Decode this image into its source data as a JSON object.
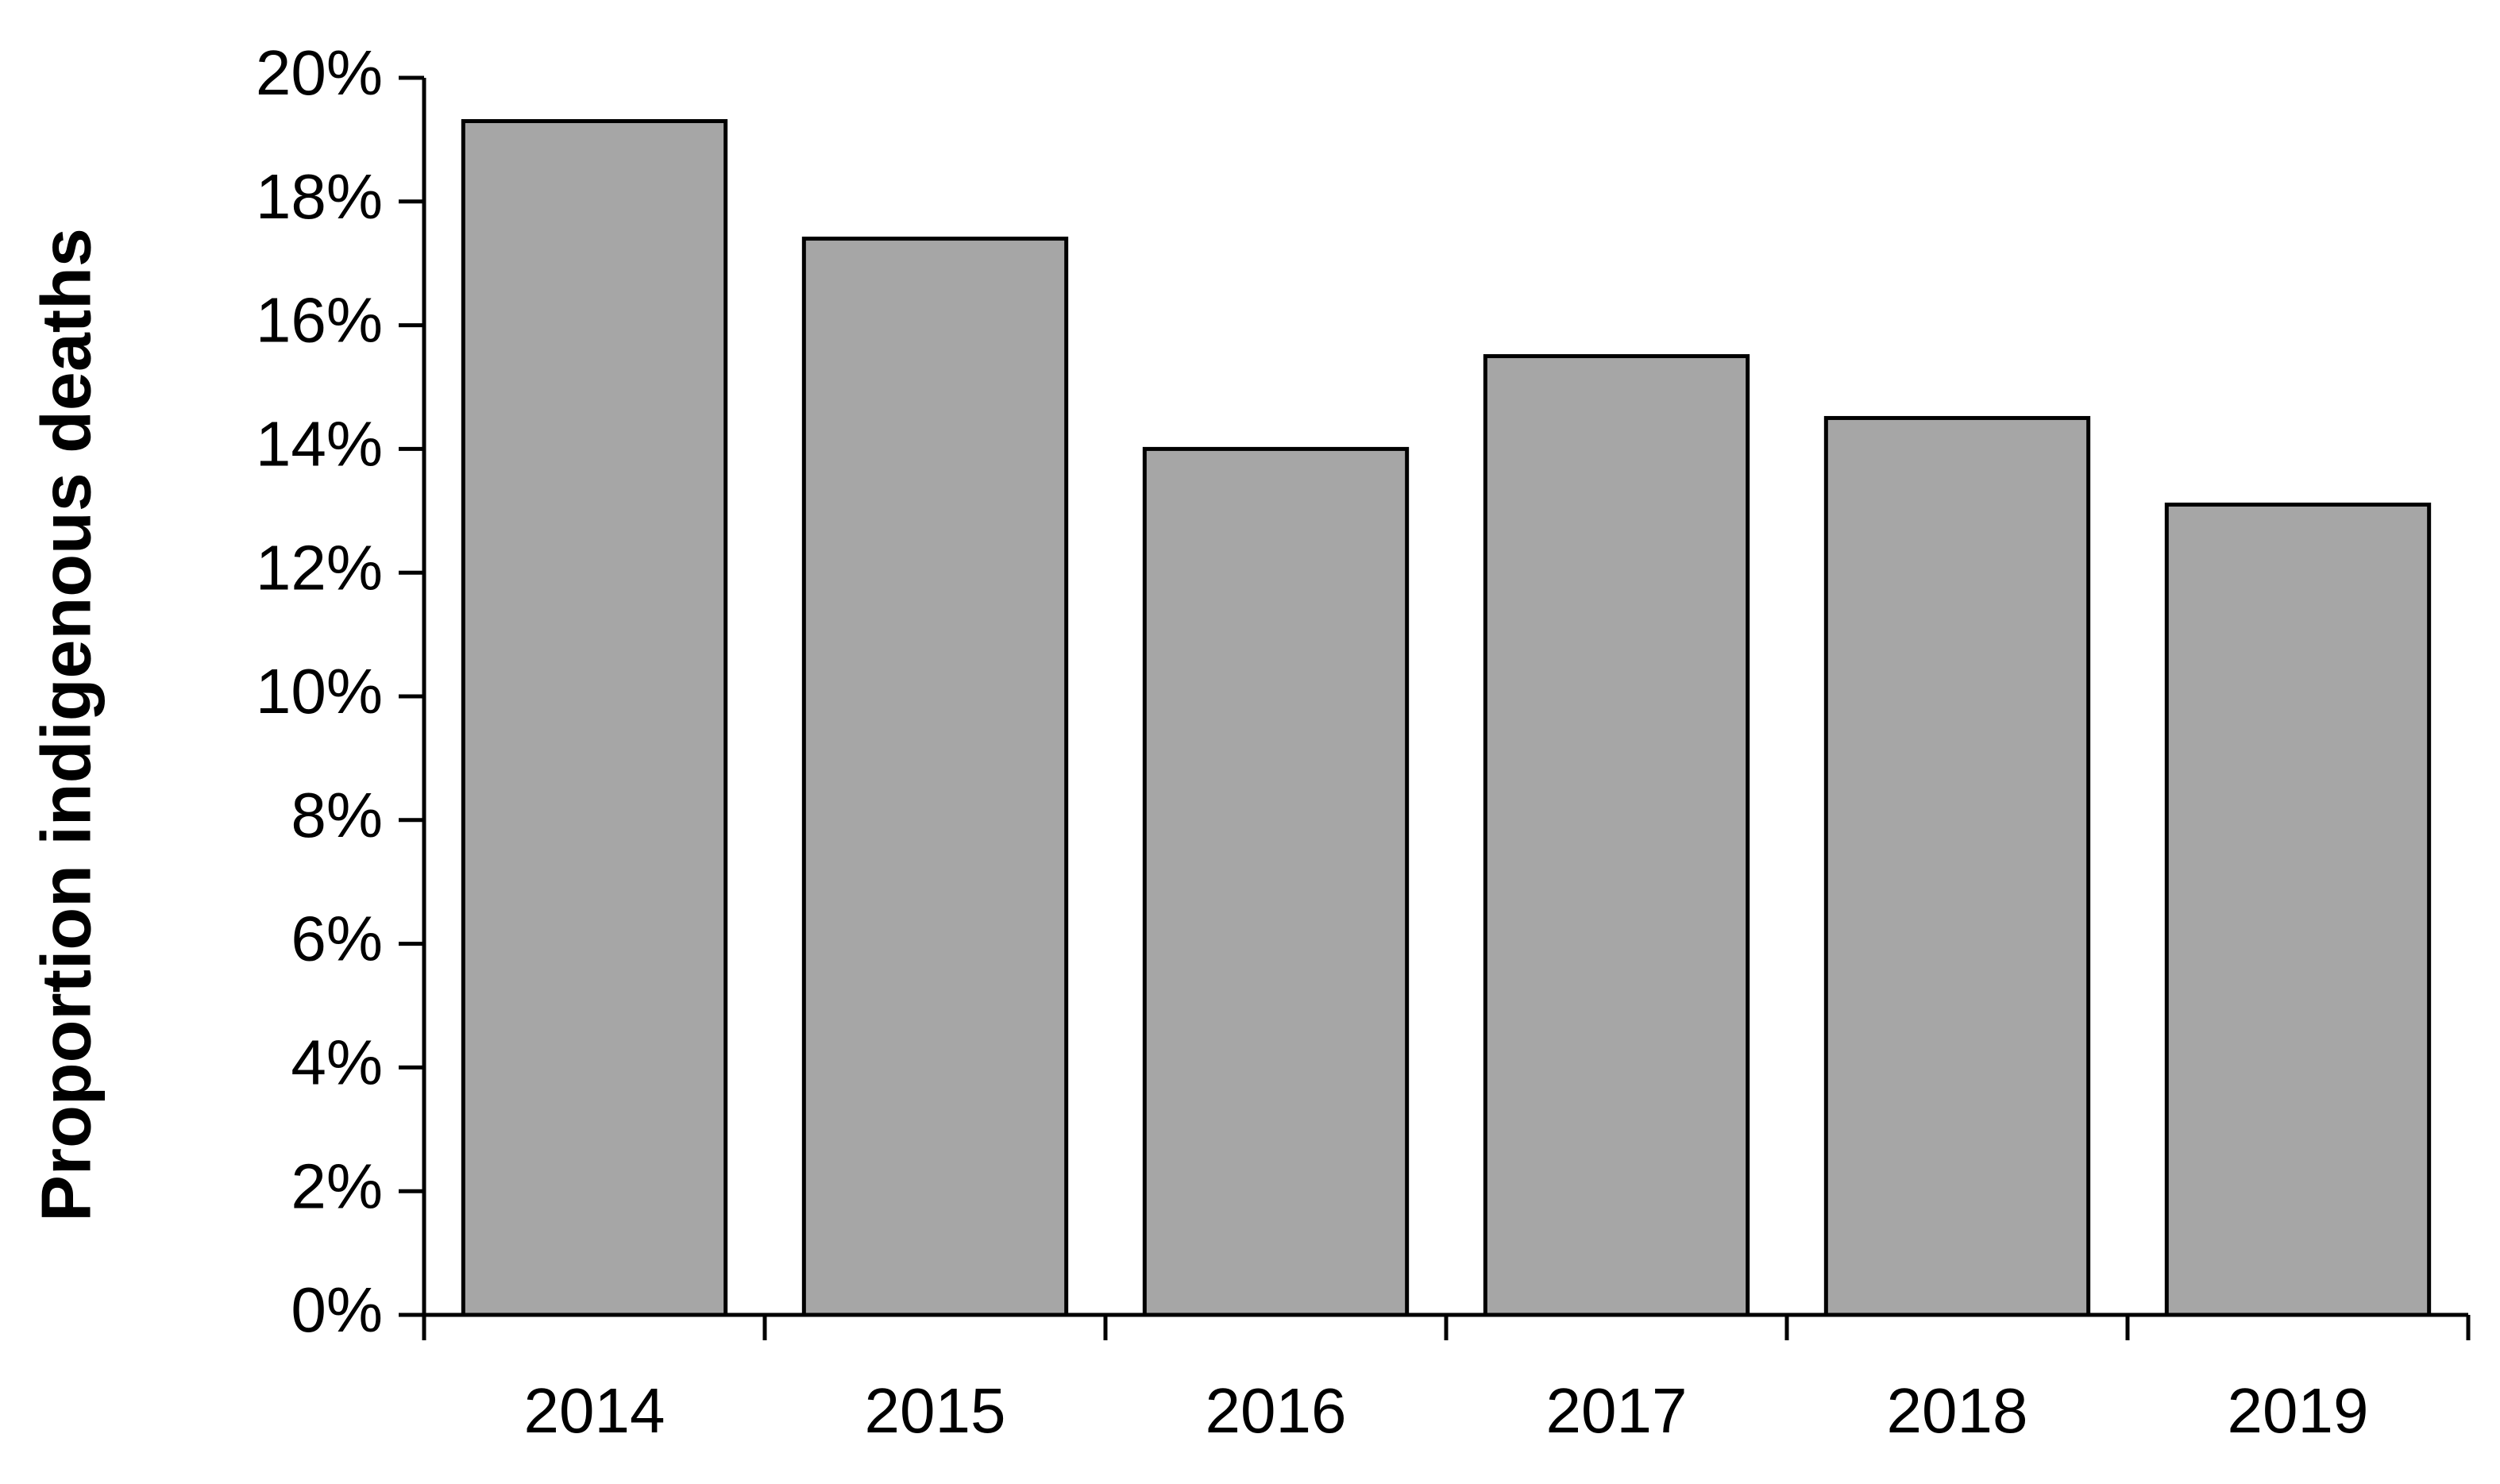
{
  "chart_data": {
    "type": "bar",
    "y_label": "Proportion indigenous deaths",
    "categories": [
      "2014",
      "2015",
      "2016",
      "2017",
      "2018",
      "2019"
    ],
    "values": [
      19.3,
      17.4,
      14.0,
      15.5,
      14.5,
      13.1
    ],
    "color": "#a6a6a6",
    "ylim": [
      0,
      20
    ],
    "yticks": [
      {
        "value": 0,
        "label": "0%"
      },
      {
        "value": 2,
        "label": "2%"
      },
      {
        "value": 4,
        "label": "4%"
      },
      {
        "value": 6,
        "label": "6%"
      },
      {
        "value": 8,
        "label": "8%"
      },
      {
        "value": 10,
        "label": "10%"
      },
      {
        "value": 12,
        "label": "12%"
      },
      {
        "value": 14,
        "label": "14%"
      },
      {
        "value": 16,
        "label": "16%"
      },
      {
        "value": 18,
        "label": "18%"
      },
      {
        "value": 20,
        "label": "20%"
      }
    ],
    "grid": false
  }
}
